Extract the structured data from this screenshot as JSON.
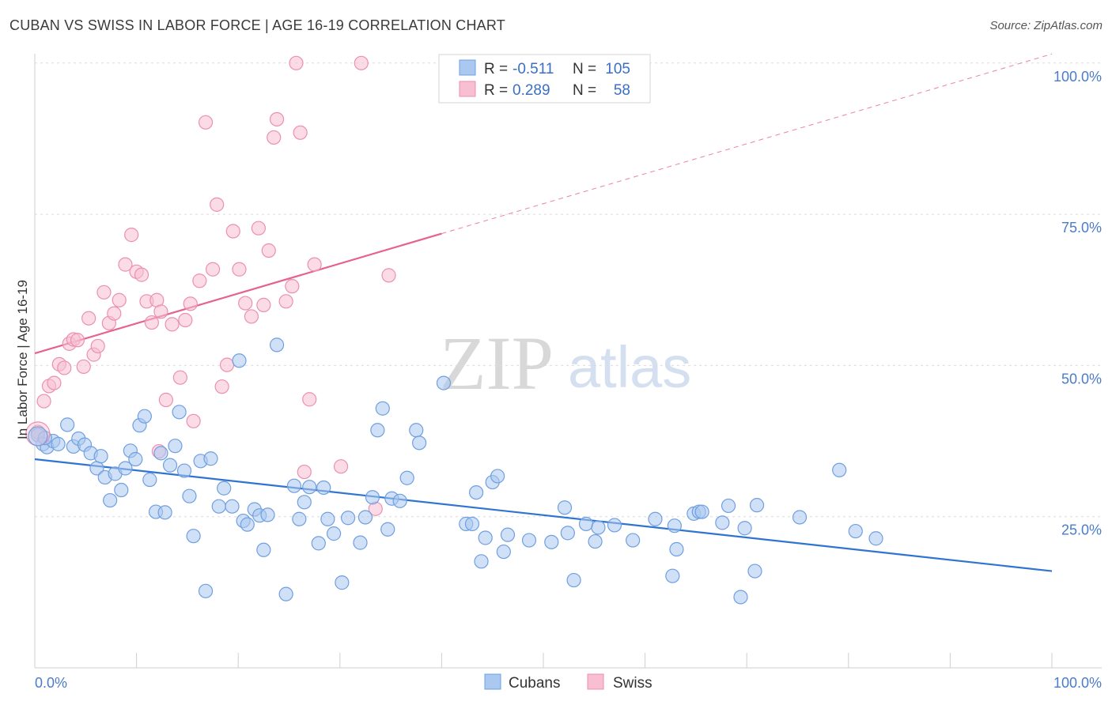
{
  "title": "CUBAN VS SWISS IN LABOR FORCE | AGE 16-19 CORRELATION CHART",
  "source": "Source: ZipAtlas.com",
  "watermark": {
    "zip": "ZIP",
    "atlas": "atlas"
  },
  "chart_data": {
    "type": "scatter",
    "ylabel": "In Labor Force | Age 16-19",
    "xlim": [
      0,
      100
    ],
    "ylim": [
      0,
      105
    ],
    "x_tick_labels": [
      "0.0%",
      "100.0%"
    ],
    "y_ticks": [
      25,
      50,
      75,
      100
    ],
    "y_tick_labels": [
      "25.0%",
      "50.0%",
      "75.0%",
      "100.0%"
    ],
    "grid": true,
    "legend": {
      "position": "top-center",
      "rows": [
        {
          "r_label": "R =",
          "r_value": "-0.511",
          "n_label": "N =",
          "n_value": "105"
        },
        {
          "r_label": "R =",
          "r_value": "0.289",
          "n_label": "N =",
          "n_value": "58"
        }
      ]
    },
    "bottom_legend": [
      "Cubans",
      "Swiss"
    ],
    "colors": {
      "cubans_fill": "#aac8f0",
      "cubans_stroke": "#6f9fe0",
      "cubans_line": "#2f74d0",
      "swiss_fill": "#f8bfd2",
      "swiss_stroke": "#ec8fb0",
      "swiss_line": "#e5638e"
    },
    "series": [
      {
        "name": "Cubans",
        "trend": {
          "x": [
            0,
            100
          ],
          "y": [
            34.5,
            16.0
          ]
        },
        "points": [
          [
            0.3,
            38.5
          ],
          [
            0.8,
            37.0
          ],
          [
            1.2,
            36.5
          ],
          [
            1.8,
            37.5
          ],
          [
            2.3,
            37.0
          ],
          [
            3.2,
            40.2
          ],
          [
            3.8,
            36.6
          ],
          [
            4.3,
            37.9
          ],
          [
            4.9,
            36.9
          ],
          [
            5.5,
            35.5
          ],
          [
            6.1,
            33.0
          ],
          [
            6.5,
            35.0
          ],
          [
            6.9,
            31.5
          ],
          [
            7.4,
            27.7
          ],
          [
            7.9,
            32.1
          ],
          [
            8.5,
            29.4
          ],
          [
            8.9,
            33.0
          ],
          [
            9.4,
            35.9
          ],
          [
            9.9,
            34.5
          ],
          [
            10.3,
            40.1
          ],
          [
            10.8,
            41.6
          ],
          [
            11.3,
            31.1
          ],
          [
            11.9,
            25.8
          ],
          [
            12.4,
            35.5
          ],
          [
            12.8,
            25.7
          ],
          [
            13.3,
            33.5
          ],
          [
            13.8,
            36.7
          ],
          [
            14.2,
            42.3
          ],
          [
            14.7,
            32.6
          ],
          [
            15.2,
            28.4
          ],
          [
            15.6,
            21.8
          ],
          [
            16.3,
            34.2
          ],
          [
            16.8,
            12.7
          ],
          [
            17.3,
            34.6
          ],
          [
            18.1,
            26.7
          ],
          [
            18.6,
            29.7
          ],
          [
            19.4,
            26.7
          ],
          [
            20.1,
            50.8
          ],
          [
            20.5,
            24.3
          ],
          [
            20.9,
            23.7
          ],
          [
            21.6,
            26.2
          ],
          [
            22.1,
            25.2
          ],
          [
            22.5,
            19.5
          ],
          [
            22.9,
            25.3
          ],
          [
            23.8,
            53.4
          ],
          [
            24.7,
            12.2
          ],
          [
            25.5,
            30.1
          ],
          [
            26.0,
            24.6
          ],
          [
            26.5,
            27.4
          ],
          [
            27.0,
            29.9
          ],
          [
            27.9,
            20.6
          ],
          [
            28.4,
            29.8
          ],
          [
            28.8,
            24.6
          ],
          [
            29.4,
            22.2
          ],
          [
            30.2,
            14.1
          ],
          [
            30.8,
            24.8
          ],
          [
            32.0,
            20.7
          ],
          [
            32.5,
            24.9
          ],
          [
            33.2,
            28.2
          ],
          [
            33.7,
            39.3
          ],
          [
            34.2,
            42.9
          ],
          [
            34.7,
            22.9
          ],
          [
            35.1,
            28.0
          ],
          [
            35.9,
            27.6
          ],
          [
            36.6,
            31.4
          ],
          [
            37.5,
            39.3
          ],
          [
            37.8,
            37.2
          ],
          [
            40.2,
            47.1
          ],
          [
            42.4,
            23.8
          ],
          [
            43.0,
            23.8
          ],
          [
            43.4,
            29.0
          ],
          [
            43.9,
            17.6
          ],
          [
            44.3,
            21.5
          ],
          [
            45.0,
            30.7
          ],
          [
            45.5,
            31.7
          ],
          [
            46.1,
            19.2
          ],
          [
            46.5,
            22.0
          ],
          [
            48.6,
            21.1
          ],
          [
            50.8,
            20.8
          ],
          [
            52.1,
            26.5
          ],
          [
            52.4,
            22.3
          ],
          [
            53.0,
            14.5
          ],
          [
            54.2,
            23.8
          ],
          [
            55.1,
            20.9
          ],
          [
            55.4,
            23.2
          ],
          [
            57.0,
            23.6
          ],
          [
            58.8,
            21.1
          ],
          [
            61.0,
            24.6
          ],
          [
            62.7,
            15.2
          ],
          [
            62.9,
            23.5
          ],
          [
            63.1,
            19.6
          ],
          [
            64.8,
            25.5
          ],
          [
            65.3,
            25.8
          ],
          [
            65.6,
            25.8
          ],
          [
            67.6,
            24.0
          ],
          [
            68.2,
            26.8
          ],
          [
            69.4,
            11.7
          ],
          [
            69.8,
            23.1
          ],
          [
            70.8,
            16.0
          ],
          [
            71.0,
            26.9
          ],
          [
            75.2,
            24.9
          ],
          [
            79.1,
            32.7
          ],
          [
            80.7,
            22.6
          ],
          [
            82.7,
            21.4
          ],
          [
            1.0,
            38.0
          ]
        ]
      },
      {
        "name": "Swiss",
        "trend": {
          "x": [
            0,
            40
          ],
          "y": [
            52.0,
            71.8
          ]
        },
        "trend_extension": {
          "x": [
            40,
            100
          ],
          "y": [
            71.8,
            101.5
          ]
        },
        "points": [
          [
            0.3,
            39.0
          ],
          [
            0.9,
            44.1
          ],
          [
            1.4,
            46.6
          ],
          [
            1.9,
            47.1
          ],
          [
            2.4,
            50.2
          ],
          [
            2.9,
            49.6
          ],
          [
            3.4,
            53.6
          ],
          [
            3.8,
            54.3
          ],
          [
            4.2,
            54.2
          ],
          [
            4.8,
            49.8
          ],
          [
            5.3,
            57.8
          ],
          [
            5.8,
            51.8
          ],
          [
            6.2,
            53.2
          ],
          [
            6.8,
            62.1
          ],
          [
            7.3,
            57.0
          ],
          [
            7.8,
            58.6
          ],
          [
            8.3,
            60.8
          ],
          [
            8.9,
            66.7
          ],
          [
            9.5,
            71.6
          ],
          [
            10.0,
            65.5
          ],
          [
            10.5,
            65.0
          ],
          [
            11.0,
            60.6
          ],
          [
            11.5,
            57.1
          ],
          [
            12.0,
            60.8
          ],
          [
            12.4,
            58.9
          ],
          [
            12.9,
            44.3
          ],
          [
            13.5,
            56.8
          ],
          [
            14.3,
            48.0
          ],
          [
            14.8,
            57.5
          ],
          [
            15.3,
            60.2
          ],
          [
            15.6,
            40.8
          ],
          [
            16.2,
            64.0
          ],
          [
            16.8,
            90.2
          ],
          [
            17.5,
            65.9
          ],
          [
            17.9,
            76.6
          ],
          [
            18.9,
            50.1
          ],
          [
            19.5,
            72.2
          ],
          [
            20.1,
            65.9
          ],
          [
            20.7,
            60.3
          ],
          [
            21.3,
            58.1
          ],
          [
            22.0,
            72.7
          ],
          [
            22.5,
            60.0
          ],
          [
            23.0,
            69.0
          ],
          [
            23.5,
            87.7
          ],
          [
            23.8,
            90.7
          ],
          [
            24.7,
            60.6
          ],
          [
            25.3,
            63.1
          ],
          [
            25.7,
            100.0
          ],
          [
            26.1,
            88.5
          ],
          [
            26.5,
            32.4
          ],
          [
            27.0,
            44.4
          ],
          [
            27.5,
            66.7
          ],
          [
            30.1,
            33.3
          ],
          [
            32.1,
            100.0
          ],
          [
            33.5,
            26.3
          ],
          [
            34.8,
            64.9
          ],
          [
            12.2,
            35.8
          ],
          [
            18.4,
            46.5
          ]
        ]
      }
    ]
  }
}
